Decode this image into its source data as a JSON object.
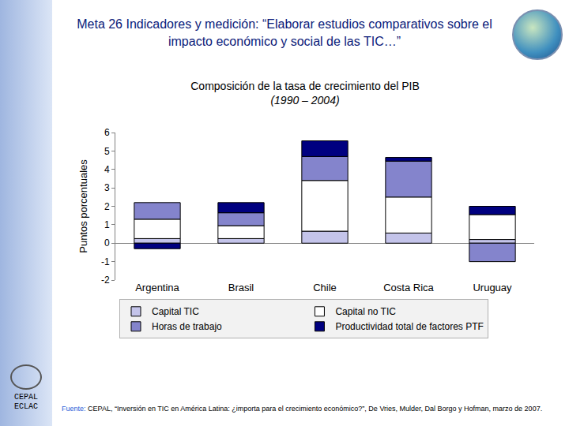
{
  "header": "Meta 26 Indicadores y medición: “Elaborar estudios comparativos sobre el impacto económico y social de las TIC…”",
  "logo_text": [
    "CEPAL",
    "ECLAC"
  ],
  "source_label": "Fuente:",
  "source": "CEPAL, “Inversión en TIC en América Latina: ¿importa para el crecimiento económico?”, De Vries, Mulder, Dal Borgo y Hofman, marzo de 2007.",
  "chart_data": {
    "type": "bar",
    "title": "Composición de la tasa de crecimiento del PIB",
    "subtitle": "(1990 – 2004)",
    "y_label": "Puntos porcentuales",
    "categories": [
      "Argentina",
      "Brasil",
      "Chile",
      "Costa Rica",
      "Uruguay"
    ],
    "series": [
      {
        "name": "Capital TIC",
        "color": "#c4c4ea",
        "values": [
          0.25,
          0.25,
          0.65,
          0.55,
          0.2
        ]
      },
      {
        "name": "Capital no TIC",
        "color": "#ffffff",
        "values": [
          1.05,
          0.7,
          2.75,
          1.95,
          1.35
        ]
      },
      {
        "name": "Horas de trabajo",
        "color": "#8484cc",
        "values": [
          0.9,
          0.7,
          1.3,
          1.95,
          -1.0
        ]
      },
      {
        "name": "Productividad total de factores PTF",
        "color": "#000080",
        "values": [
          -0.3,
          0.55,
          0.85,
          0.2,
          0.45
        ]
      }
    ],
    "stacked": true,
    "ylim": [
      -2,
      6
    ],
    "yticks": [
      -2,
      -1,
      0,
      1,
      2,
      3,
      4,
      5,
      6
    ],
    "grid": false,
    "legend": "bottom"
  }
}
